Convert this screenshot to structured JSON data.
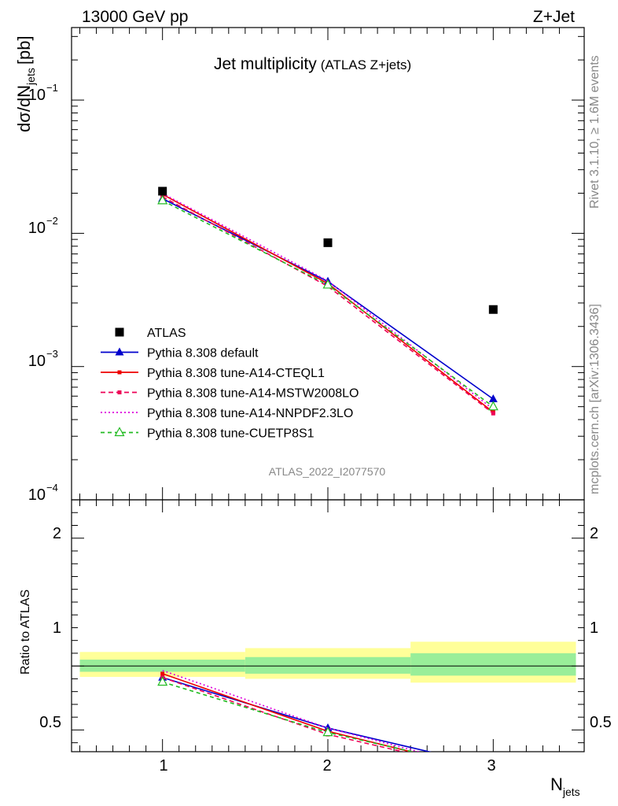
{
  "header": {
    "energy": "13000 GeV pp",
    "process": "Z+Jet"
  },
  "side_labels": {
    "rivet": "Rivet 3.1.10, ≥ 1.6M events",
    "mcplots": "mcplots.cern.ch [arXiv:1306.3436]"
  },
  "chart_data": {
    "type": "line",
    "title": "Jet multiplicity",
    "subtitle": "(ATLAS Z+jets)",
    "analysis_id": "ATLAS_2022_I2077570",
    "xlabel": "N",
    "xlabel_sub": "jets",
    "ylabel": "dσ/dN",
    "ylabel_sub": "jets",
    "ylabel_unit": "[pb]",
    "ratio_ylabel": "Ratio to ATLAS",
    "xlim": [
      0.45,
      3.55
    ],
    "ylim": [
      0.0001,
      0.35
    ],
    "yscale": "log",
    "ratio_ylim": [
      0.33,
      2.3
    ],
    "x_ticks": [
      "1",
      "2",
      "3"
    ],
    "y_ticks": [
      "10",
      "10",
      "10",
      "10"
    ],
    "y_tick_exps": [
      "−1",
      "−2",
      "−3",
      "−4"
    ],
    "ratio_ticks": [
      "0.5",
      "1",
      "2"
    ],
    "ratio_ticks_right": [
      "0.5",
      "1",
      "2"
    ],
    "x": [
      1,
      2,
      3
    ],
    "data": {
      "name": "ATLAS",
      "values": [
        0.0207,
        0.0085,
        0.00268
      ],
      "bins": [
        [
          0.5,
          1.5
        ],
        [
          1.5,
          2.5
        ],
        [
          2.5,
          3.5
        ]
      ],
      "band_inner": [
        [
          0.955,
          1.05
        ],
        [
          0.94,
          1.07
        ],
        [
          0.925,
          1.1
        ]
      ],
      "band_outer": [
        [
          0.915,
          1.11
        ],
        [
          0.9,
          1.14
        ],
        [
          0.87,
          1.19
        ]
      ]
    },
    "series": [
      {
        "name": "Pythia 8.308 default",
        "color": "#0000cc",
        "dash": "",
        "marker": "triangle-filled",
        "values": [
          0.0182,
          0.00435,
          0.00057
        ],
        "ratio": [
          0.91,
          0.515,
          0.212
        ]
      },
      {
        "name": "Pythia 8.308 tune-A14-CTEQL1",
        "color": "#ee0000",
        "dash": "",
        "marker": "square-small",
        "values": [
          0.0196,
          0.0042,
          0.000455
        ],
        "ratio": [
          0.94,
          0.49,
          0.17
        ]
      },
      {
        "name": "Pythia 8.308 tune-A14-MSTW2008LO",
        "color": "#ee0055",
        "dash": "6,4",
        "marker": "square-small",
        "values": [
          0.0188,
          0.004,
          0.000445
        ],
        "ratio": [
          0.91,
          0.465,
          0.166
        ]
      },
      {
        "name": "Pythia 8.308 tune-A14-NNPDF2.3LO",
        "color": "#dd00dd",
        "dash": "2,3",
        "marker": "none",
        "values": [
          0.0199,
          0.0044,
          0.000478
        ],
        "ratio": [
          0.965,
          0.515,
          0.178
        ]
      },
      {
        "name": "Pythia 8.308 tune-CUETP8S1",
        "color": "#22bb22",
        "dash": "5,4",
        "marker": "triangle-open",
        "values": [
          0.0176,
          0.0041,
          0.0005
        ],
        "ratio": [
          0.875,
          0.48,
          0.186
        ]
      }
    ],
    "legend_position": "lower-left",
    "colors": {
      "band_inner": "#99ee99",
      "band_outer": "#ffff99",
      "data_marker": "#000000",
      "watermark": "#999999"
    }
  }
}
